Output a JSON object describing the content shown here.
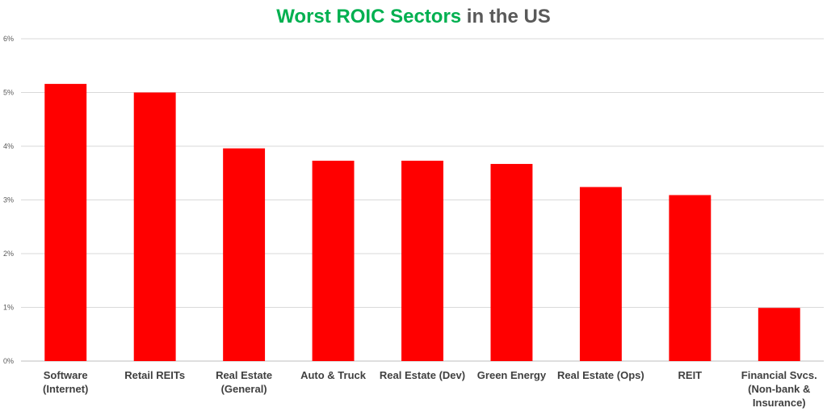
{
  "chart_data": {
    "type": "bar",
    "title": "Worst ROIC Sectors in the US",
    "title_parts": {
      "highlight": "Worst ROIC Sectors",
      "rest": " in the US"
    },
    "xlabel": "",
    "ylabel": "",
    "categories": [
      [
        "Software",
        "(Internet)"
      ],
      [
        "Retail REITs"
      ],
      [
        "Real Estate",
        "(General)"
      ],
      [
        "Auto & Truck"
      ],
      [
        "Real Estate (Dev)"
      ],
      [
        "Green Energy"
      ],
      [
        "Real Estate (Ops)"
      ],
      [
        "REIT"
      ],
      [
        "Financial Svcs.",
        "(Non-bank &",
        "Insurance)"
      ]
    ],
    "values": [
      5.16,
      5.0,
      3.96,
      3.73,
      3.73,
      3.67,
      3.24,
      3.09,
      0.99
    ],
    "ylim": [
      0,
      6
    ],
    "yticks": [
      0,
      1,
      2,
      3,
      4,
      5,
      6
    ],
    "ytick_labels": [
      "0%",
      "1%",
      "2%",
      "3%",
      "4%",
      "5%",
      "6%"
    ],
    "grid": true,
    "legend": "none",
    "colors": {
      "bar": "#ff0000",
      "title_highlight": "#00b050",
      "title_rest": "#595959"
    }
  }
}
